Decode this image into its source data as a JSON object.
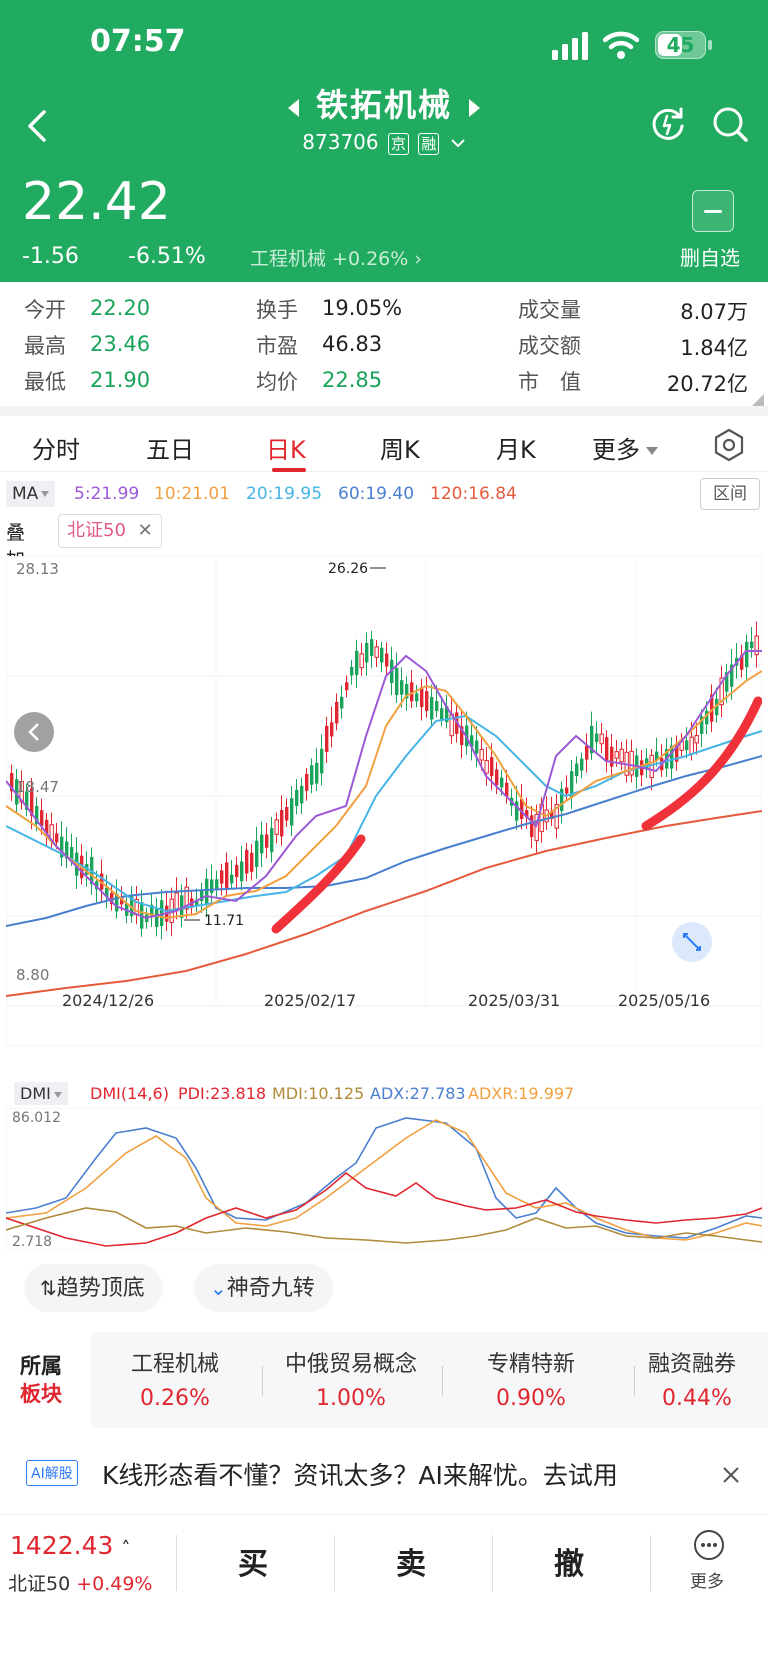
{
  "status": {
    "time": "07:57",
    "battery": "45"
  },
  "header": {
    "title": "铁拓机械",
    "code": "873706",
    "tag1": "京",
    "tag2": "融",
    "price": "22.42",
    "change": "-1.56",
    "change_pct": "-6.51%",
    "sector_text": "工程机械 +0.26% ›",
    "remove_label": "删自选"
  },
  "stats": {
    "open_label": "今开",
    "open": "22.20",
    "high_label": "最高",
    "high": "23.46",
    "low_label": "最低",
    "low": "21.90",
    "turnover_label": "换手",
    "turnover": "19.05%",
    "pe_label": "市盈",
    "pe": "46.83",
    "avg_label": "均价",
    "avg": "22.85",
    "volume_label": "成交量",
    "volume": "8.07万",
    "amount_label": "成交额",
    "amount": "1.84亿",
    "mcap_label": "市　值",
    "mcap": "20.72亿"
  },
  "tabs": {
    "t1": "分时",
    "t2": "五日",
    "t3": "日K",
    "t4": "周K",
    "t5": "月K",
    "t6": "更多"
  },
  "ma": {
    "label": "MA",
    "ma5": "5:21.99",
    "ma10": "10:21.01",
    "ma20": "20:19.95",
    "ma60": "60:19.40",
    "ma120": "120:16.84",
    "range_btn": "区间",
    "overlay_label": "叠加",
    "overlay_index": "北证50"
  },
  "chart_data": {
    "type": "candlestick",
    "y_top_label": "28.13",
    "y_mid_label": "18.47",
    "y_bottom_label": "8.80",
    "max_label": "26.26",
    "min_label": "11.71",
    "x_labels": [
      "2024/12/26",
      "2025/02/17",
      "2025/03/31",
      "2025/05/16"
    ],
    "ylim": [
      8.8,
      28.13
    ]
  },
  "dmi": {
    "label": "DMI",
    "params": "DMI(14,6)",
    "pdi": "PDI:23.818",
    "mdi": "MDI:10.125",
    "adx": "ADX:27.783",
    "adxr": "ADXR:19.997",
    "top": "86.012",
    "bottom": "2.718"
  },
  "pills": {
    "p1": "趋势顶底",
    "p2": "神奇九转"
  },
  "sectors": {
    "head1": "所属",
    "head2": "板块",
    "items": [
      {
        "name": "工程机械",
        "value": "0.26%"
      },
      {
        "name": "中俄贸易概念",
        "value": "1.00%"
      },
      {
        "name": "专精特新",
        "value": "0.90%"
      },
      {
        "name": "融资融券",
        "value": "0.44%"
      }
    ]
  },
  "ai": {
    "tag": "AI解股",
    "text": "K线形态看不懂？资讯太多？AI来解忧。去试用"
  },
  "bottom": {
    "index_value": "1422.43",
    "index_name": "北证50",
    "index_change": "+0.49%",
    "buy": "买",
    "sell": "卖",
    "cancel": "撤",
    "more": "更多"
  },
  "colors": {
    "header_bg": "#21ab61",
    "up": "#e0262f",
    "down": "#1aa35a",
    "ma5": "#9b59d6",
    "ma10": "#f0a040",
    "ma20": "#46b4e6",
    "ma60": "#4a7fd0",
    "ma120": "#e65a3c"
  }
}
